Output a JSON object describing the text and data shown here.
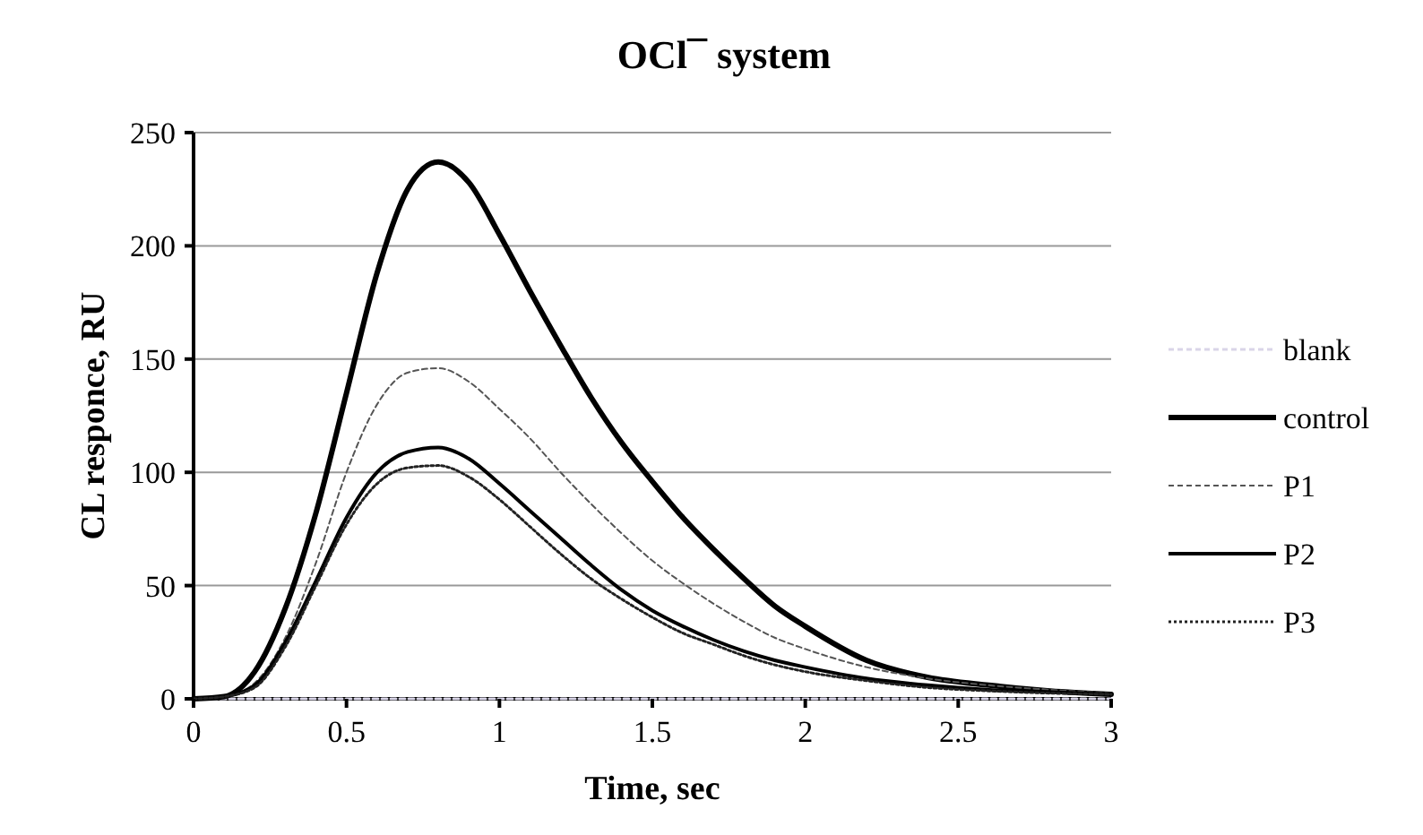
{
  "chart_data": {
    "type": "line",
    "title": "OCl¯ system",
    "xlabel": "Time, sec",
    "ylabel": "CL responce, RU",
    "x": [
      0,
      0.1,
      0.2,
      0.3,
      0.4,
      0.5,
      0.6,
      0.7,
      0.8,
      0.9,
      1.0,
      1.1,
      1.2,
      1.3,
      1.4,
      1.5,
      1.6,
      1.7,
      1.8,
      1.9,
      2.0,
      2.2,
      2.4,
      2.6,
      2.8,
      3.0
    ],
    "series": [
      {
        "name": "blank",
        "color": "#d9d5e8",
        "line_style": "dashed",
        "values": [
          0,
          0,
          0,
          0,
          0,
          0,
          0,
          0,
          0,
          0,
          0,
          0,
          0,
          0,
          0,
          0,
          0,
          0,
          0,
          0,
          0,
          0,
          0,
          0,
          0,
          0
        ]
      },
      {
        "name": "control",
        "color": "#000000",
        "line_style": "solid",
        "values": [
          0,
          1,
          12,
          40,
          82,
          135,
          188,
          225,
          237,
          228,
          205,
          180,
          156,
          133,
          113,
          96,
          80,
          66,
          53,
          41,
          32,
          17,
          9.5,
          6,
          3.5,
          2
        ]
      },
      {
        "name": "P1",
        "color": "#555555",
        "line_style": "dashed",
        "values": [
          0,
          1,
          7,
          27,
          60,
          100,
          130,
          144,
          146,
          140,
          128,
          115,
          100,
          86,
          73,
          61,
          51,
          42,
          34,
          27,
          22,
          14,
          9,
          6,
          4,
          2.5
        ]
      },
      {
        "name": "P2",
        "color": "#000000",
        "line_style": "solid",
        "values": [
          0,
          1,
          6,
          25,
          52,
          80,
          100,
          109,
          111,
          106,
          95,
          83,
          71,
          59,
          48,
          39,
          32,
          26,
          21,
          17,
          14,
          9,
          6,
          4,
          3,
          2
        ]
      },
      {
        "name": "P3",
        "color": "#222222",
        "line_style": "dotted",
        "values": [
          0,
          1,
          5,
          23,
          50,
          77,
          95,
          102,
          103,
          98,
          88,
          76,
          64,
          53,
          44,
          36,
          29,
          24,
          19,
          15,
          12,
          8,
          5,
          3.5,
          2.5,
          2
        ]
      }
    ],
    "xlim": [
      0,
      3
    ],
    "xticks": [
      0,
      0.5,
      1,
      1.5,
      2,
      2.5,
      3
    ],
    "ylim": [
      0,
      250
    ],
    "yticks": [
      0,
      50,
      100,
      150,
      200,
      250
    ],
    "grid": "y",
    "legend": "right",
    "marker": "none"
  }
}
